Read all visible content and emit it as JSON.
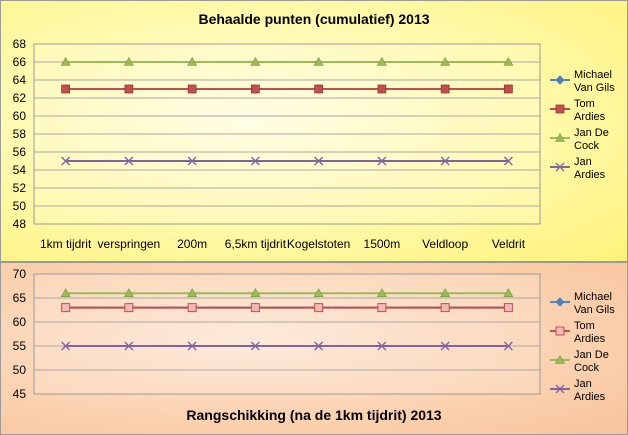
{
  "chart_data": [
    {
      "type": "line",
      "title": "Behaalde punten (cumulatief) 2013",
      "categories": [
        "1km tijdrit",
        "verspringen",
        "200m",
        "6,5km tijdrit",
        "Kogelstoten",
        "1500m",
        "Veldloop",
        "Veldrit"
      ],
      "ylim": [
        48,
        68
      ],
      "yticks": [
        48,
        50,
        52,
        54,
        56,
        58,
        60,
        62,
        64,
        66,
        68
      ],
      "grid": true,
      "legend_position": "right",
      "series": [
        {
          "name": "Michael Van Gils",
          "legend_lines": [
            "Michael",
            "Van Gils"
          ],
          "color": "#4f81bd",
          "marker": "diamond",
          "values": [
            63,
            63,
            63,
            63,
            63,
            63,
            63,
            63
          ]
        },
        {
          "name": "Tom Ardies",
          "legend_lines": [
            "Tom",
            "Ardies"
          ],
          "color": "#c0504d",
          "marker": "square",
          "values": [
            63,
            63,
            63,
            63,
            63,
            63,
            63,
            63
          ]
        },
        {
          "name": "Jan De Cock",
          "legend_lines": [
            "Jan De",
            "Cock"
          ],
          "color": "#9bbb59",
          "marker": "triangle",
          "values": [
            66,
            66,
            66,
            66,
            66,
            66,
            66,
            66
          ]
        },
        {
          "name": "Jan Ardies",
          "legend_lines": [
            "Jan",
            "Ardies"
          ],
          "color": "#8064a2",
          "marker": "x",
          "values": [
            55,
            55,
            55,
            55,
            55,
            55,
            55,
            55
          ]
        }
      ]
    },
    {
      "type": "line",
      "title": "Rangschikking (na de 1km tijdrit) 2013",
      "ylim": [
        45,
        70
      ],
      "yticks": [
        45,
        50,
        55,
        60,
        65,
        70
      ],
      "grid": true,
      "legend_position": "right",
      "series": [
        {
          "name": "Michael Van Gils",
          "legend_lines": [
            "Michael",
            "Van Gils"
          ],
          "color": "#4f81bd",
          "marker": "diamond",
          "values": [
            63,
            63,
            63,
            63,
            63,
            63,
            63,
            63
          ]
        },
        {
          "name": "Tom Ardies",
          "legend_lines": [
            "Tom",
            "Ardies"
          ],
          "color": "#c0504d",
          "marker": "square-open",
          "values": [
            63,
            63,
            63,
            63,
            63,
            63,
            63,
            63
          ]
        },
        {
          "name": "Jan De Cock",
          "legend_lines": [
            "Jan De",
            "Cock"
          ],
          "color": "#9bbb59",
          "marker": "triangle",
          "values": [
            66,
            66,
            66,
            66,
            66,
            66,
            66,
            66
          ]
        },
        {
          "name": "Jan Ardies",
          "legend_lines": [
            "Jan",
            "Ardies"
          ],
          "color": "#8064a2",
          "marker": "x",
          "values": [
            55,
            55,
            55,
            55,
            55,
            55,
            55,
            55
          ]
        }
      ]
    }
  ]
}
